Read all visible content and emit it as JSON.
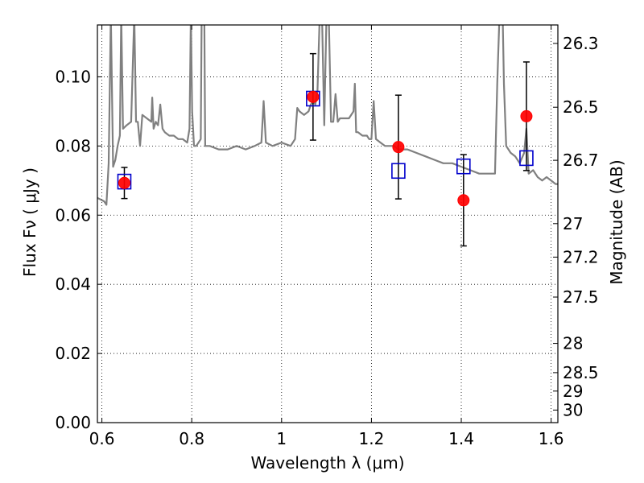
{
  "chart_data": {
    "type": "scatter",
    "title": "",
    "xlabel": "Wavelength  λ (μm)",
    "ylabel": "Flux  Fν  ( μJy )",
    "ylabel_right": "Magnitude (AB)",
    "xlim": [
      0.59,
      1.615
    ],
    "ylim": [
      0.0,
      0.115
    ],
    "grid": true,
    "x_ticks": [
      0.6,
      0.8,
      1.0,
      1.2,
      1.4,
      1.6
    ],
    "x_tick_labels": [
      "0.6",
      "0.8",
      "1",
      "1.2",
      "1.4",
      "1.6"
    ],
    "y_ticks": [
      0.0,
      0.02,
      0.04,
      0.06,
      0.08,
      0.1
    ],
    "y_tick_labels": [
      "0.00",
      "0.02",
      "0.04",
      "0.06",
      "0.08",
      "0.10"
    ],
    "right_ticks": [
      {
        "mag": 26.3,
        "label": "26.3"
      },
      {
        "mag": 26.5,
        "label": "26.5"
      },
      {
        "mag": 26.7,
        "label": "26.7"
      },
      {
        "mag": 27.0,
        "label": "27"
      },
      {
        "mag": 27.2,
        "label": "27.2"
      },
      {
        "mag": 27.5,
        "label": "27.5"
      },
      {
        "mag": 28.0,
        "label": "28"
      },
      {
        "mag": 28.5,
        "label": "28.5"
      },
      {
        "mag": 29.0,
        "label": "29"
      },
      {
        "mag": 30.0,
        "label": "30"
      }
    ],
    "series": [
      {
        "type": "points-with-errorbars",
        "color": "#ff0000",
        "marker": "circle",
        "points": [
          {
            "x": 0.65,
            "y": 0.0693,
            "yerr": 0.0045
          },
          {
            "x": 1.07,
            "y": 0.0942,
            "yerr": 0.0125
          },
          {
            "x": 1.26,
            "y": 0.0797,
            "yerr": 0.015
          },
          {
            "x": 1.405,
            "y": 0.0643,
            "yerr": 0.0132
          },
          {
            "x": 1.545,
            "y": 0.0886,
            "yerr": 0.0157
          }
        ]
      },
      {
        "type": "model-points",
        "color": "#0000cc",
        "marker": "open-square",
        "points": [
          {
            "x": 0.65,
            "y": 0.0697
          },
          {
            "x": 1.07,
            "y": 0.0937
          },
          {
            "x": 1.26,
            "y": 0.0728
          },
          {
            "x": 1.405,
            "y": 0.0741
          },
          {
            "x": 1.545,
            "y": 0.0765
          }
        ]
      },
      {
        "type": "line",
        "color": "#808080",
        "points": [
          [
            0.59,
            0.065
          ],
          [
            0.605,
            0.064
          ],
          [
            0.61,
            0.063
          ],
          [
            0.615,
            0.075
          ],
          [
            0.62,
            0.118
          ],
          [
            0.625,
            0.074
          ],
          [
            0.63,
            0.076
          ],
          [
            0.635,
            0.08
          ],
          [
            0.64,
            0.083
          ],
          [
            0.643,
            0.118
          ],
          [
            0.647,
            0.085
          ],
          [
            0.655,
            0.086
          ],
          [
            0.665,
            0.087
          ],
          [
            0.672,
            0.118
          ],
          [
            0.676,
            0.087
          ],
          [
            0.68,
            0.087
          ],
          [
            0.685,
            0.08
          ],
          [
            0.69,
            0.089
          ],
          [
            0.7,
            0.088
          ],
          [
            0.71,
            0.087
          ],
          [
            0.712,
            0.094
          ],
          [
            0.715,
            0.085
          ],
          [
            0.72,
            0.087
          ],
          [
            0.725,
            0.086
          ],
          [
            0.73,
            0.092
          ],
          [
            0.735,
            0.085
          ],
          [
            0.74,
            0.084
          ],
          [
            0.75,
            0.083
          ],
          [
            0.76,
            0.083
          ],
          [
            0.77,
            0.082
          ],
          [
            0.78,
            0.082
          ],
          [
            0.79,
            0.081
          ],
          [
            0.795,
            0.085
          ],
          [
            0.798,
            0.118
          ],
          [
            0.801,
            0.09
          ],
          [
            0.805,
            0.08
          ],
          [
            0.81,
            0.08
          ],
          [
            0.815,
            0.081
          ],
          [
            0.82,
            0.082
          ],
          [
            0.822,
            0.118
          ],
          [
            0.828,
            0.118
          ],
          [
            0.83,
            0.08
          ],
          [
            0.84,
            0.08
          ],
          [
            0.86,
            0.079
          ],
          [
            0.88,
            0.079
          ],
          [
            0.9,
            0.08
          ],
          [
            0.92,
            0.079
          ],
          [
            0.94,
            0.08
          ],
          [
            0.955,
            0.081
          ],
          [
            0.96,
            0.093
          ],
          [
            0.965,
            0.081
          ],
          [
            0.98,
            0.08
          ],
          [
            1.0,
            0.081
          ],
          [
            1.02,
            0.08
          ],
          [
            1.03,
            0.082
          ],
          [
            1.035,
            0.091
          ],
          [
            1.04,
            0.09
          ],
          [
            1.05,
            0.089
          ],
          [
            1.06,
            0.09
          ],
          [
            1.065,
            0.092
          ],
          [
            1.07,
            0.093
          ],
          [
            1.075,
            0.092
          ],
          [
            1.08,
            0.096
          ],
          [
            1.085,
            0.118
          ],
          [
            1.09,
            0.118
          ],
          [
            1.095,
            0.086
          ],
          [
            1.1,
            0.118
          ],
          [
            1.105,
            0.118
          ],
          [
            1.11,
            0.087
          ],
          [
            1.115,
            0.087
          ],
          [
            1.12,
            0.095
          ],
          [
            1.125,
            0.087
          ],
          [
            1.13,
            0.088
          ],
          [
            1.14,
            0.088
          ],
          [
            1.15,
            0.088
          ],
          [
            1.16,
            0.09
          ],
          [
            1.163,
            0.098
          ],
          [
            1.166,
            0.084
          ],
          [
            1.17,
            0.084
          ],
          [
            1.18,
            0.083
          ],
          [
            1.19,
            0.083
          ],
          [
            1.195,
            0.082
          ],
          [
            1.2,
            0.082
          ],
          [
            1.205,
            0.093
          ],
          [
            1.21,
            0.082
          ],
          [
            1.22,
            0.081
          ],
          [
            1.23,
            0.08
          ],
          [
            1.24,
            0.08
          ],
          [
            1.25,
            0.08
          ],
          [
            1.26,
            0.079
          ],
          [
            1.28,
            0.079
          ],
          [
            1.3,
            0.078
          ],
          [
            1.32,
            0.077
          ],
          [
            1.34,
            0.076
          ],
          [
            1.36,
            0.075
          ],
          [
            1.38,
            0.075
          ],
          [
            1.4,
            0.074
          ],
          [
            1.42,
            0.073
          ],
          [
            1.44,
            0.072
          ],
          [
            1.46,
            0.072
          ],
          [
            1.475,
            0.072
          ],
          [
            1.48,
            0.098
          ],
          [
            1.485,
            0.118
          ],
          [
            1.492,
            0.118
          ],
          [
            1.495,
            0.098
          ],
          [
            1.5,
            0.08
          ],
          [
            1.51,
            0.078
          ],
          [
            1.52,
            0.077
          ],
          [
            1.53,
            0.075
          ],
          [
            1.54,
            0.078
          ],
          [
            1.545,
            0.085
          ],
          [
            1.55,
            0.072
          ],
          [
            1.56,
            0.073
          ],
          [
            1.57,
            0.071
          ],
          [
            1.58,
            0.07
          ],
          [
            1.59,
            0.071
          ],
          [
            1.6,
            0.07
          ],
          [
            1.61,
            0.069
          ],
          [
            1.615,
            0.069
          ]
        ]
      }
    ]
  }
}
